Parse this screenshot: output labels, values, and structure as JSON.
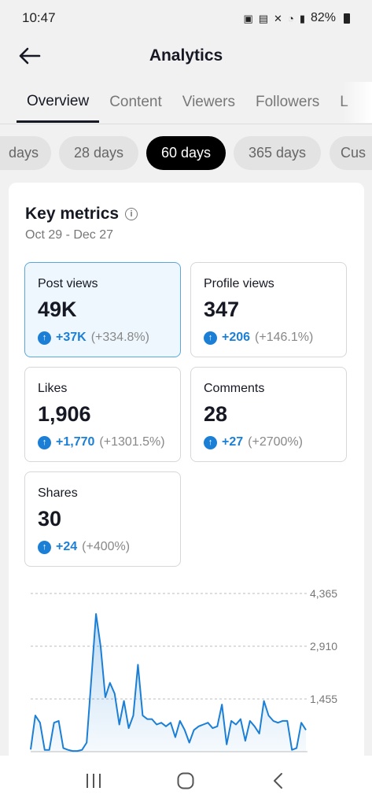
{
  "status": {
    "time": "10:47",
    "battery": "82%"
  },
  "header": {
    "title": "Analytics"
  },
  "tabs": [
    "Overview",
    "Content",
    "Viewers",
    "Followers",
    "L"
  ],
  "chips": [
    "days",
    "28 days",
    "60 days",
    "365 days",
    "Cus"
  ],
  "key_metrics": {
    "title": "Key metrics",
    "date_range": "Oct 29 - Dec 27"
  },
  "metrics": [
    {
      "label": "Post views",
      "value": "49K",
      "delta": "+37K",
      "pct": "(+334.8%)"
    },
    {
      "label": "Profile views",
      "value": "347",
      "delta": "+206",
      "pct": "(+146.1%)"
    },
    {
      "label": "Likes",
      "value": "1,906",
      "delta": "+1,770",
      "pct": "(+1301.5%)"
    },
    {
      "label": "Comments",
      "value": "28",
      "delta": "+27",
      "pct": "(+2700%)"
    },
    {
      "label": "Shares",
      "value": "30",
      "delta": "+24",
      "pct": "(+400%)"
    }
  ],
  "colors": {
    "accent": "#1b7fd6",
    "selected_bg": "#eef7fd",
    "selected_border": "#5aa7dd",
    "chip_active": "#000000"
  },
  "chart_data": {
    "type": "area",
    "y_ticks": [
      "4,365",
      "2,910",
      "1,455"
    ],
    "ylim": [
      0,
      4365
    ],
    "grid": true,
    "values": [
      60,
      1000,
      800,
      50,
      50,
      800,
      850,
      100,
      50,
      20,
      20,
      50,
      250,
      2000,
      3800,
      2900,
      1500,
      1900,
      1600,
      750,
      1400,
      650,
      1000,
      2400,
      1000,
      900,
      900,
      750,
      800,
      700,
      800,
      400,
      850,
      600,
      250,
      600,
      700,
      750,
      800,
      650,
      700,
      1300,
      200,
      850,
      750,
      900,
      300,
      850,
      700,
      500,
      1400,
      1000,
      850,
      800,
      850,
      850,
      50,
      100,
      800,
      600
    ]
  }
}
